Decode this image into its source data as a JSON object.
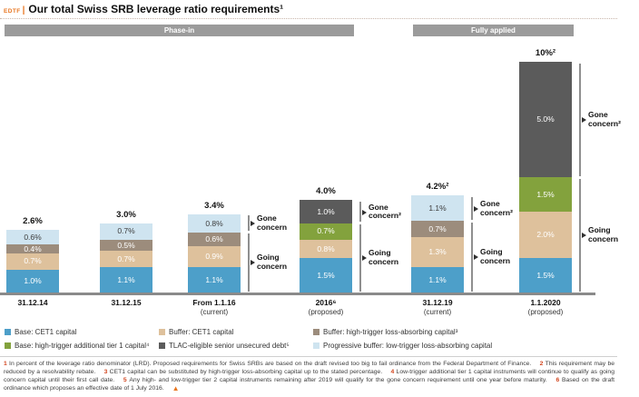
{
  "header": {
    "edtf_label": "EDTF",
    "divider": "|",
    "title": "Our total Swiss SRB leverage ratio requirements¹"
  },
  "phase_bands": [
    {
      "label": "Phase-in"
    },
    {
      "label": "Fully applied"
    }
  ],
  "chart_data": {
    "type": "bar",
    "stacked": true,
    "title": "Our total Swiss SRB leverage ratio requirements",
    "unit": "percent of the leverage ratio denominator (LRD)",
    "ylim": [
      0,
      10
    ],
    "legend_position": "bottom",
    "colors": {
      "base_cet1": "#4D9FC9",
      "buffer_cet1": "#DEC19C",
      "buffer_ht_lac": "#9C8C7C",
      "base_ht_at1": "#83A23D",
      "tlac_debt": "#5B5B5B",
      "prog_buffer_lt_lac": "#CFE4F0"
    },
    "groups": [
      {
        "label": "31.12.14",
        "sublabel": "",
        "phase": "Phase-in",
        "total": 2.6,
        "total_label": "2.6%",
        "segments": [
          {
            "key": "base_cet1",
            "value": 1.0,
            "label": "1.0%"
          },
          {
            "key": "buffer_cet1",
            "value": 0.7,
            "label": "0.7%"
          },
          {
            "key": "buffer_ht_lac",
            "value": 0.4,
            "label": "0.4%"
          },
          {
            "key": "prog_buffer_lt_lac",
            "value": 0.6,
            "label": "0.6%"
          }
        ],
        "brackets": []
      },
      {
        "label": "31.12.15",
        "sublabel": "",
        "phase": "Phase-in",
        "total": 3.0,
        "total_label": "3.0%",
        "segments": [
          {
            "key": "base_cet1",
            "value": 1.1,
            "label": "1.1%"
          },
          {
            "key": "buffer_cet1",
            "value": 0.7,
            "label": "0.7%"
          },
          {
            "key": "buffer_ht_lac",
            "value": 0.5,
            "label": "0.5%"
          },
          {
            "key": "prog_buffer_lt_lac",
            "value": 0.7,
            "label": "0.7%"
          }
        ],
        "brackets": []
      },
      {
        "label": "From 1.1.16",
        "sublabel": "(current)",
        "phase": "Phase-in",
        "total": 3.4,
        "total_label": "3.4%",
        "segments": [
          {
            "key": "base_cet1",
            "value": 1.1,
            "label": "1.1%"
          },
          {
            "key": "buffer_cet1",
            "value": 0.9,
            "label": "0.9%"
          },
          {
            "key": "buffer_ht_lac",
            "value": 0.6,
            "label": "0.6%"
          },
          {
            "key": "prog_buffer_lt_lac",
            "value": 0.8,
            "label": "0.8%"
          }
        ],
        "brackets": [
          {
            "label": "Gone concern",
            "start": 3,
            "end": 3
          },
          {
            "label": "Going concern",
            "start": 0,
            "end": 2
          }
        ]
      },
      {
        "label": "2016⁶",
        "sublabel": "(proposed)",
        "phase": "Phase-in",
        "total": 4.0,
        "total_label": "4.0%",
        "segments": [
          {
            "key": "base_cet1",
            "value": 1.5,
            "label": "1.5%"
          },
          {
            "key": "buffer_cet1",
            "value": 0.8,
            "label": "0.8%"
          },
          {
            "key": "base_ht_at1",
            "value": 0.7,
            "label": "0.7%"
          },
          {
            "key": "tlac_debt",
            "value": 1.0,
            "label": "1.0%"
          }
        ],
        "brackets": [
          {
            "label": "Gone concern²",
            "start": 3,
            "end": 3
          },
          {
            "label": "Going concern",
            "start": 0,
            "end": 2
          }
        ]
      },
      {
        "label": "31.12.19",
        "sublabel": "(current)",
        "phase": "Fully applied",
        "total": 4.2,
        "total_label": "4.2%²",
        "segments": [
          {
            "key": "base_cet1",
            "value": 1.1,
            "label": "1.1%"
          },
          {
            "key": "buffer_cet1",
            "value": 1.3,
            "label": "1.3%"
          },
          {
            "key": "buffer_ht_lac",
            "value": 0.7,
            "label": "0.7%"
          },
          {
            "key": "prog_buffer_lt_lac",
            "value": 1.1,
            "label": "1.1%"
          }
        ],
        "brackets": [
          {
            "label": "Gone concern²",
            "start": 3,
            "end": 3
          },
          {
            "label": "Going concern",
            "start": 0,
            "end": 2
          }
        ]
      },
      {
        "label": "1.1.2020",
        "sublabel": "(proposed)",
        "phase": "Fully applied",
        "total": 10.0,
        "total_label": "10%²",
        "segments": [
          {
            "key": "base_cet1",
            "value": 1.5,
            "label": "1.5%"
          },
          {
            "key": "buffer_cet1",
            "value": 2.0,
            "label": "2.0%"
          },
          {
            "key": "base_ht_at1",
            "value": 1.5,
            "label": "1.5%"
          },
          {
            "key": "tlac_debt",
            "value": 5.0,
            "label": "5.0%"
          }
        ],
        "brackets": [
          {
            "label": "Gone concern²",
            "start": 3,
            "end": 3
          },
          {
            "label": "Going concern",
            "start": 0,
            "end": 2
          }
        ]
      }
    ]
  },
  "legend": {
    "items": [
      {
        "key": "base_cet1",
        "label": "Base: CET1 capital"
      },
      {
        "key": "buffer_cet1",
        "label": "Buffer: CET1 capital"
      },
      {
        "key": "buffer_ht_lac",
        "label": "Buffer: high-trigger loss-absorbing capital³"
      },
      {
        "key": "base_ht_at1",
        "label": "Base: high-trigger additional tier 1 capital⁴"
      },
      {
        "key": "tlac_debt",
        "label": "TLAC-eligible senior unsecured debt⁵"
      },
      {
        "key": "prog_buffer_lt_lac",
        "label": "Progressive buffer: low-trigger loss-absorbing capital"
      }
    ]
  },
  "footnotes": {
    "items": [
      {
        "marker": "1",
        "text": "In percent of the leverage ratio denominator (LRD). Proposed requirements for Swiss SRBs are based on the draft revised too big to fail ordinance from the Federal Department of Finance."
      },
      {
        "marker": "2",
        "text": "This requirement may be reduced by a resolvability rebate."
      },
      {
        "marker": "3",
        "text": "CET1 capital can be substituted by high-trigger loss-absorbing capital up to the stated percentage."
      },
      {
        "marker": "4",
        "text": "Low-trigger additional tier 1 capital instruments will continue to qualify as going concern capital until their first call date."
      },
      {
        "marker": "5",
        "text": "Any high- and low-trigger tier 2 capital instruments remaining after 2019 will qualify for the gone concern requirement until one year before maturity."
      },
      {
        "marker": "6",
        "text": "Based on the draft ordinance which proposes an effective date of 1 July 2016."
      }
    ],
    "warning_icon": "warning-triangle"
  }
}
